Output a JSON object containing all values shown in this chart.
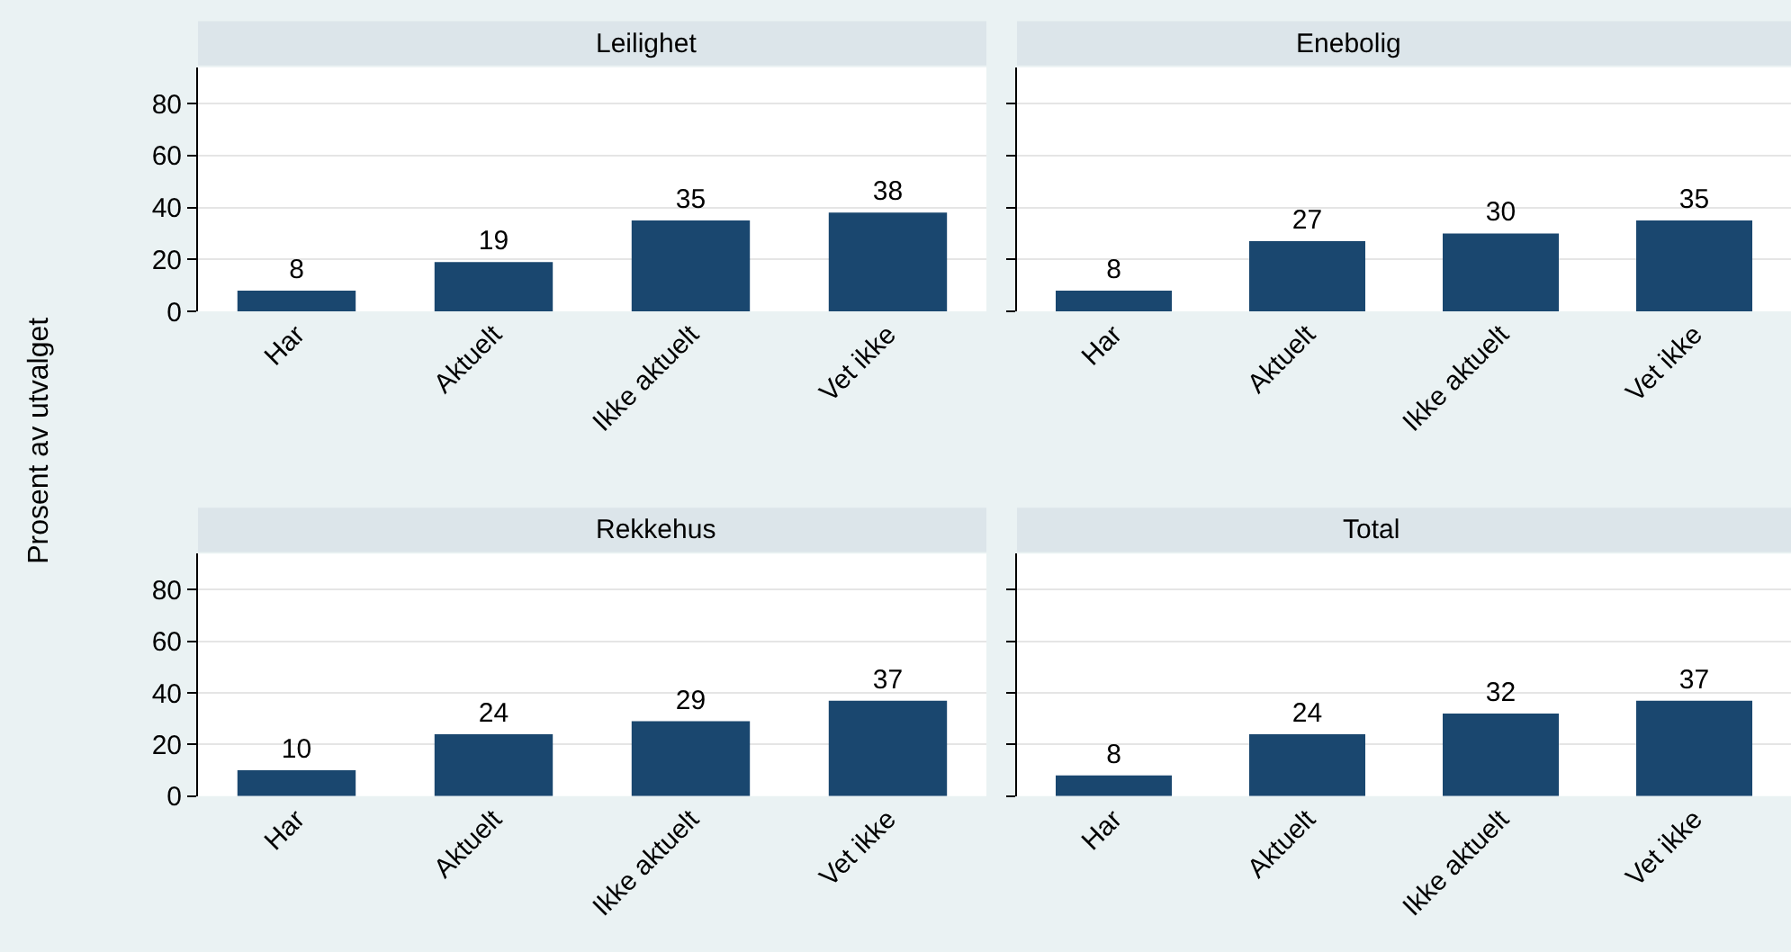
{
  "chart_data": [
    {
      "type": "bar",
      "title": "Leilighet",
      "ylabel": "Prosent av utvalget",
      "categories": [
        "Har",
        "Aktuelt",
        "Ikke aktuelt",
        "Vet ikke"
      ],
      "values": [
        8,
        19,
        35,
        38
      ],
      "color": "#1a476f",
      "data_labels": true,
      "ylim": [
        0,
        94
      ],
      "yticks": [
        0,
        20,
        40,
        60,
        80
      ],
      "grid": "y"
    },
    {
      "type": "bar",
      "title": "Enebolig",
      "categories": [
        "Har",
        "Aktuelt",
        "Ikke aktuelt",
        "Vet ikke"
      ],
      "values": [
        8,
        27,
        30,
        35
      ],
      "color": "#1a476f",
      "data_labels": true,
      "ylim": [
        0,
        94
      ],
      "yticks": [
        0,
        20,
        40,
        60,
        80
      ],
      "grid": "y",
      "tick_labels": "x"
    },
    {
      "type": "bar",
      "title": "Rekkehus",
      "categories": [
        "Har",
        "Aktuelt",
        "Ikke aktuelt",
        "Vet ikke"
      ],
      "values": [
        10,
        24,
        29,
        37
      ],
      "color": "#1a476f",
      "data_labels": true,
      "ylim": [
        0,
        94
      ],
      "yticks": [
        0,
        20,
        40,
        60,
        80
      ],
      "grid": "y"
    },
    {
      "type": "bar",
      "title": "Total",
      "categories": [
        "Har",
        "Aktuelt",
        "Ikke aktuelt",
        "Vet ikke"
      ],
      "values": [
        8,
        24,
        32,
        37
      ],
      "color": "#1a476f",
      "data_labels": true,
      "ylim": [
        0,
        94
      ],
      "yticks": [
        0,
        20,
        40,
        60,
        80
      ],
      "grid": "y",
      "tick_labels": "x"
    }
  ]
}
